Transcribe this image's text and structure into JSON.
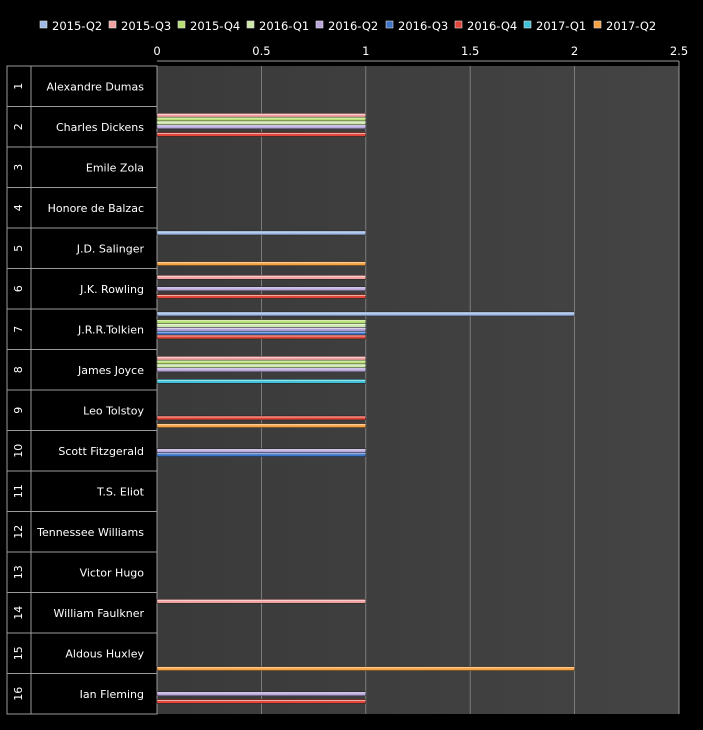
{
  "chart_data": {
    "type": "bar",
    "orientation": "horizontal",
    "xlim": [
      0,
      2.5
    ],
    "xticks": [
      "0",
      "0.5",
      "1",
      "1.5",
      "2",
      "2.5"
    ],
    "grid": true,
    "legend_position": "top",
    "row_numbers": [
      "1",
      "2",
      "3",
      "4",
      "5",
      "6",
      "7",
      "8",
      "9",
      "10",
      "11",
      "12",
      "13",
      "14",
      "15",
      "16"
    ],
    "categories": [
      "Alexandre Dumas",
      "Charles Dickens",
      "Emile Zola",
      "Honore de Balzac",
      "J.D. Salinger",
      "J.K. Rowling",
      "J.R.R.Tolkien",
      "James Joyce",
      "Leo Tolstoy",
      "Scott Fitzgerald",
      "T.S. Eliot",
      "Tennessee Williams",
      "Victor Hugo",
      "William Faulkner",
      "Aldous Huxley",
      "Ian Fleming"
    ],
    "series": [
      {
        "name": "2015-Q2",
        "color": "#9db9e8",
        "values": [
          0,
          0,
          0,
          0,
          1,
          0,
          2,
          0,
          0,
          0,
          0,
          0,
          0,
          0,
          0,
          0
        ]
      },
      {
        "name": "2015-Q3",
        "color": "#f2a0a0",
        "values": [
          0,
          1,
          0,
          0,
          0,
          1,
          0,
          1,
          0,
          0,
          0,
          0,
          0,
          1,
          0,
          0
        ]
      },
      {
        "name": "2015-Q4",
        "color": "#b7de72",
        "values": [
          0,
          1,
          0,
          0,
          0,
          0,
          1,
          1,
          0,
          0,
          0,
          0,
          0,
          0,
          0,
          0
        ]
      },
      {
        "name": "2016-Q1",
        "color": "#cce8a8",
        "values": [
          0,
          1,
          0,
          0,
          0,
          0,
          1,
          1,
          0,
          0,
          0,
          0,
          0,
          0,
          0,
          0
        ]
      },
      {
        "name": "2016-Q2",
        "color": "#b9a7dc",
        "values": [
          0,
          1,
          0,
          0,
          0,
          1,
          1,
          1,
          0,
          1,
          0,
          0,
          0,
          0,
          0,
          1
        ]
      },
      {
        "name": "2016-Q3",
        "color": "#3e74c6",
        "values": [
          0,
          0,
          0,
          0,
          0,
          0,
          1,
          0,
          0,
          1,
          0,
          0,
          0,
          0,
          0,
          0
        ]
      },
      {
        "name": "2016-Q4",
        "color": "#e0463a",
        "values": [
          0,
          1,
          0,
          0,
          0,
          1,
          1,
          0,
          1,
          0,
          0,
          0,
          0,
          0,
          0,
          1
        ]
      },
      {
        "name": "2017-Q1",
        "color": "#3ec3d8",
        "values": [
          0,
          0,
          0,
          0,
          0,
          0,
          0,
          1,
          0,
          0,
          0,
          0,
          0,
          0,
          0,
          0
        ]
      },
      {
        "name": "2017-Q2",
        "color": "#f5a142",
        "values": [
          0,
          0,
          0,
          0,
          1,
          0,
          0,
          0,
          1,
          0,
          0,
          0,
          0,
          0,
          2,
          0
        ]
      }
    ]
  }
}
